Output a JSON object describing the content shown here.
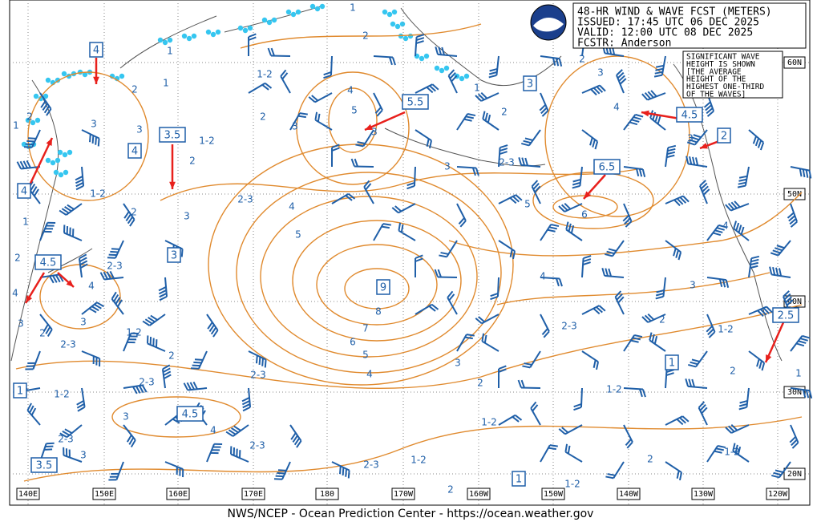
{
  "header": {
    "lines": [
      "48-HR WIND & WAVE FCST (METERS)",
      "ISSUED: 17:45 UTC 06 DEC 2025",
      "VALID:  12:00 UTC 08 DEC 2025",
      "FCSTR:  Anderson"
    ]
  },
  "note": {
    "lines": [
      "SIGNIFICANT WAVE",
      "HEIGHT IS SHOWN",
      "[THE AVERAGE",
      "HEIGHT OF THE",
      "HIGHEST ONE-THIRD",
      "OF THE WAVES]"
    ]
  },
  "footer": "NWS/NCEP - Ocean Prediction Center - https://ocean.weather.gov",
  "lat_labels": [
    "60N",
    "50N",
    "40N",
    "30N",
    "20N"
  ],
  "lon_labels": [
    "140E",
    "150E",
    "160E",
    "170E",
    "180",
    "170W",
    "160W",
    "150W",
    "140W",
    "130W",
    "120W"
  ],
  "boxed_labels": [
    "4",
    "5.5",
    "3",
    "4.5",
    "2",
    "3.5",
    "4",
    "4",
    "6.5",
    "3",
    "4.5",
    "9",
    "2.5",
    "1",
    "1",
    "4.5",
    "3.5",
    "1"
  ],
  "contour_labels": [
    "1",
    "2",
    "1",
    "1",
    "1-2",
    "2",
    "3",
    "3",
    "2",
    "1",
    "1-2",
    "2",
    "3",
    "1-2",
    "2",
    "1",
    "2",
    "2-3",
    "4",
    "4",
    "3",
    "2",
    "2-3",
    "3",
    "1-2",
    "2",
    "2-3",
    "1-2",
    "3",
    "4",
    "2-3",
    "3",
    "2-3",
    "2-3",
    "2-3",
    "3",
    "2",
    "4",
    "5",
    "4",
    "5",
    "3",
    "3",
    "2-3",
    "2",
    "1",
    "2",
    "3",
    "4",
    "3",
    "5",
    "6",
    "4",
    "4",
    "3",
    "8",
    "7",
    "6",
    "5",
    "4",
    "3",
    "2",
    "2",
    "1-2",
    "2-3",
    "1-2",
    "1-2",
    "1-2",
    "2-3",
    "2",
    "1-2",
    "2",
    "1-2",
    "2",
    "1"
  ]
}
